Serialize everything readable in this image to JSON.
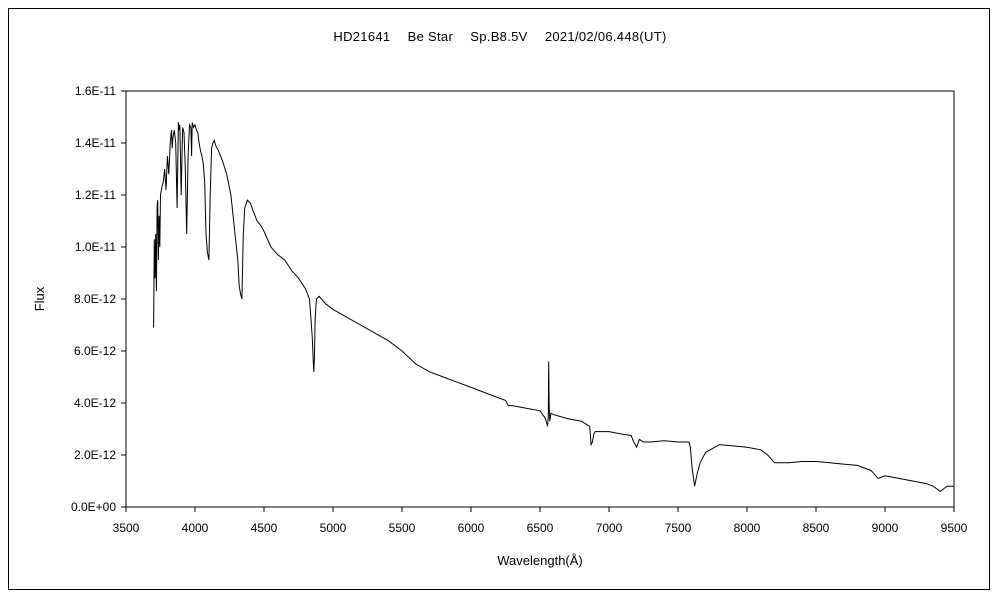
{
  "chart_data": {
    "type": "line",
    "title": "HD21641　 Be Star　 Sp.B8.5V　 2021/02/06.448(UT)",
    "xlabel": "Wavelength(Å)",
    "ylabel": "Flux",
    "xlim": [
      3500,
      9500
    ],
    "ylim": [
      0,
      1.6e-11
    ],
    "xticks": [
      3500,
      4000,
      4500,
      5000,
      5500,
      6000,
      6500,
      7000,
      7500,
      8000,
      8500,
      9000,
      9500
    ],
    "xtick_labels": [
      "3500",
      "4000",
      "4500",
      "5000",
      "5500",
      "6000",
      "6500",
      "7000",
      "7500",
      "8000",
      "8500",
      "9000",
      "9500"
    ],
    "yticks": [
      0,
      2e-12,
      4e-12,
      6e-12,
      8e-12,
      1e-11,
      1.2e-11,
      1.4e-11,
      1.6e-11
    ],
    "ytick_labels": [
      "0.0E+00",
      "2.0E-12",
      "4.0E-12",
      "6.0E-12",
      "8.0E-12",
      "1.0E-11",
      "1.2E-11",
      "1.4E-11",
      "1.6E-11"
    ],
    "grid": false,
    "legend": "none",
    "line_color": "#000000",
    "series": [
      {
        "x": [
          3700,
          3705,
          3710,
          3715,
          3720,
          3725,
          3730,
          3735,
          3740,
          3745,
          3750,
          3760,
          3770,
          3780,
          3790,
          3800,
          3810,
          3820,
          3830,
          3835,
          3840,
          3850,
          3860,
          3870,
          3880,
          3885,
          3890,
          3895,
          3900,
          3910,
          3920,
          3930,
          3940,
          3950,
          3960,
          3970,
          3975,
          3980,
          3990,
          4000,
          4010,
          4020,
          4030,
          4040,
          4050,
          4060,
          4070,
          4080,
          4090,
          4101,
          4110,
          4120,
          4130,
          4140,
          4150,
          4160,
          4170,
          4200,
          4230,
          4260,
          4290,
          4310,
          4320,
          4330,
          4340,
          4350,
          4360,
          4380,
          4400,
          4420,
          4450,
          4480,
          4500,
          4550,
          4600,
          4650,
          4700,
          4750,
          4800,
          4830,
          4850,
          4855,
          4861,
          4865,
          4870,
          4880,
          4900,
          4950,
          5000,
          5100,
          5200,
          5300,
          5400,
          5500,
          5600,
          5700,
          5800,
          5900,
          6000,
          6100,
          6200,
          6250,
          6270,
          6300,
          6400,
          6500,
          6540,
          6555,
          6560,
          6563,
          6566,
          6570,
          6580,
          6600,
          6700,
          6800,
          6860,
          6870,
          6880,
          6890,
          6900,
          7000,
          7100,
          7160,
          7180,
          7200,
          7220,
          7250,
          7300,
          7400,
          7500,
          7580,
          7590,
          7600,
          7610,
          7620,
          7640,
          7660,
          7700,
          7800,
          7900,
          8000,
          8100,
          8150,
          8200,
          8300,
          8400,
          8500,
          8600,
          8700,
          8800,
          8900,
          8950,
          9000,
          9100,
          9200,
          9300,
          9350,
          9400,
          9450,
          9500
        ],
        "y": [
          6.9e-12,
          1.03e-11,
          8.8e-12,
          1.05e-11,
          8.3e-12,
          1.15e-11,
          1.18e-11,
          9.5e-12,
          1.12e-11,
          1e-11,
          1.2e-11,
          1.23e-11,
          1.25e-11,
          1.3e-11,
          1.22e-11,
          1.35e-11,
          1.28e-11,
          1.4e-11,
          1.45e-11,
          1.38e-11,
          1.42e-11,
          1.45e-11,
          1.4e-11,
          1.15e-11,
          1.48e-11,
          1.45e-11,
          1.47e-11,
          1.35e-11,
          1.2e-11,
          1.46e-11,
          1.44e-11,
          1.3e-11,
          1.05e-11,
          1.35e-11,
          1.47e-11,
          1.46e-11,
          1.35e-11,
          1.48e-11,
          1.46e-11,
          1.47e-11,
          1.45e-11,
          1.44e-11,
          1.4e-11,
          1.37e-11,
          1.35e-11,
          1.32e-11,
          1.25e-11,
          1.05e-11,
          9.8e-12,
          9.5e-12,
          1.2e-11,
          1.38e-11,
          1.4e-11,
          1.41e-11,
          1.39e-11,
          1.38e-11,
          1.37e-11,
          1.33e-11,
          1.28e-11,
          1.2e-11,
          1.05e-11,
          9.5e-12,
          8.5e-12,
          8.2e-12,
          8e-12,
          1.05e-11,
          1.15e-11,
          1.18e-11,
          1.17e-11,
          1.14e-11,
          1.1e-11,
          1.08e-11,
          1.06e-11,
          1e-11,
          9.7e-12,
          9.5e-12,
          9.1e-12,
          8.8e-12,
          8.4e-12,
          8e-12,
          6.5e-12,
          5.8e-12,
          5.2e-12,
          5.7e-12,
          7.2e-12,
          8e-12,
          8.1e-12,
          7.8e-12,
          7.6e-12,
          7.3e-12,
          7e-12,
          6.7e-12,
          6.4e-12,
          6e-12,
          5.5e-12,
          5.2e-12,
          5e-12,
          4.8e-12,
          4.6e-12,
          4.4e-12,
          4.2e-12,
          4.1e-12,
          3.9e-12,
          3.9e-12,
          3.8e-12,
          3.7e-12,
          3.4e-12,
          3.1e-12,
          3.5e-12,
          5.6e-12,
          4e-12,
          3.3e-12,
          3.6e-12,
          3.55e-12,
          3.4e-12,
          3.3e-12,
          3.1e-12,
          2.4e-12,
          2.5e-12,
          2.8e-12,
          2.9e-12,
          2.9e-12,
          2.8e-12,
          2.75e-12,
          2.5e-12,
          2.3e-12,
          2.6e-12,
          2.5e-12,
          2.5e-12,
          2.55e-12,
          2.5e-12,
          2.5e-12,
          2.3e-12,
          1.6e-12,
          1.2e-12,
          8e-13,
          1.3e-12,
          1.7e-12,
          2.1e-12,
          2.4e-12,
          2.35e-12,
          2.3e-12,
          2.2e-12,
          2e-12,
          1.7e-12,
          1.7e-12,
          1.75e-12,
          1.75e-12,
          1.7e-12,
          1.65e-12,
          1.6e-12,
          1.4e-12,
          1.1e-12,
          1.2e-12,
          1.1e-12,
          1e-12,
          9e-13,
          8e-13,
          6e-13,
          8e-13,
          8e-13
        ]
      }
    ]
  }
}
